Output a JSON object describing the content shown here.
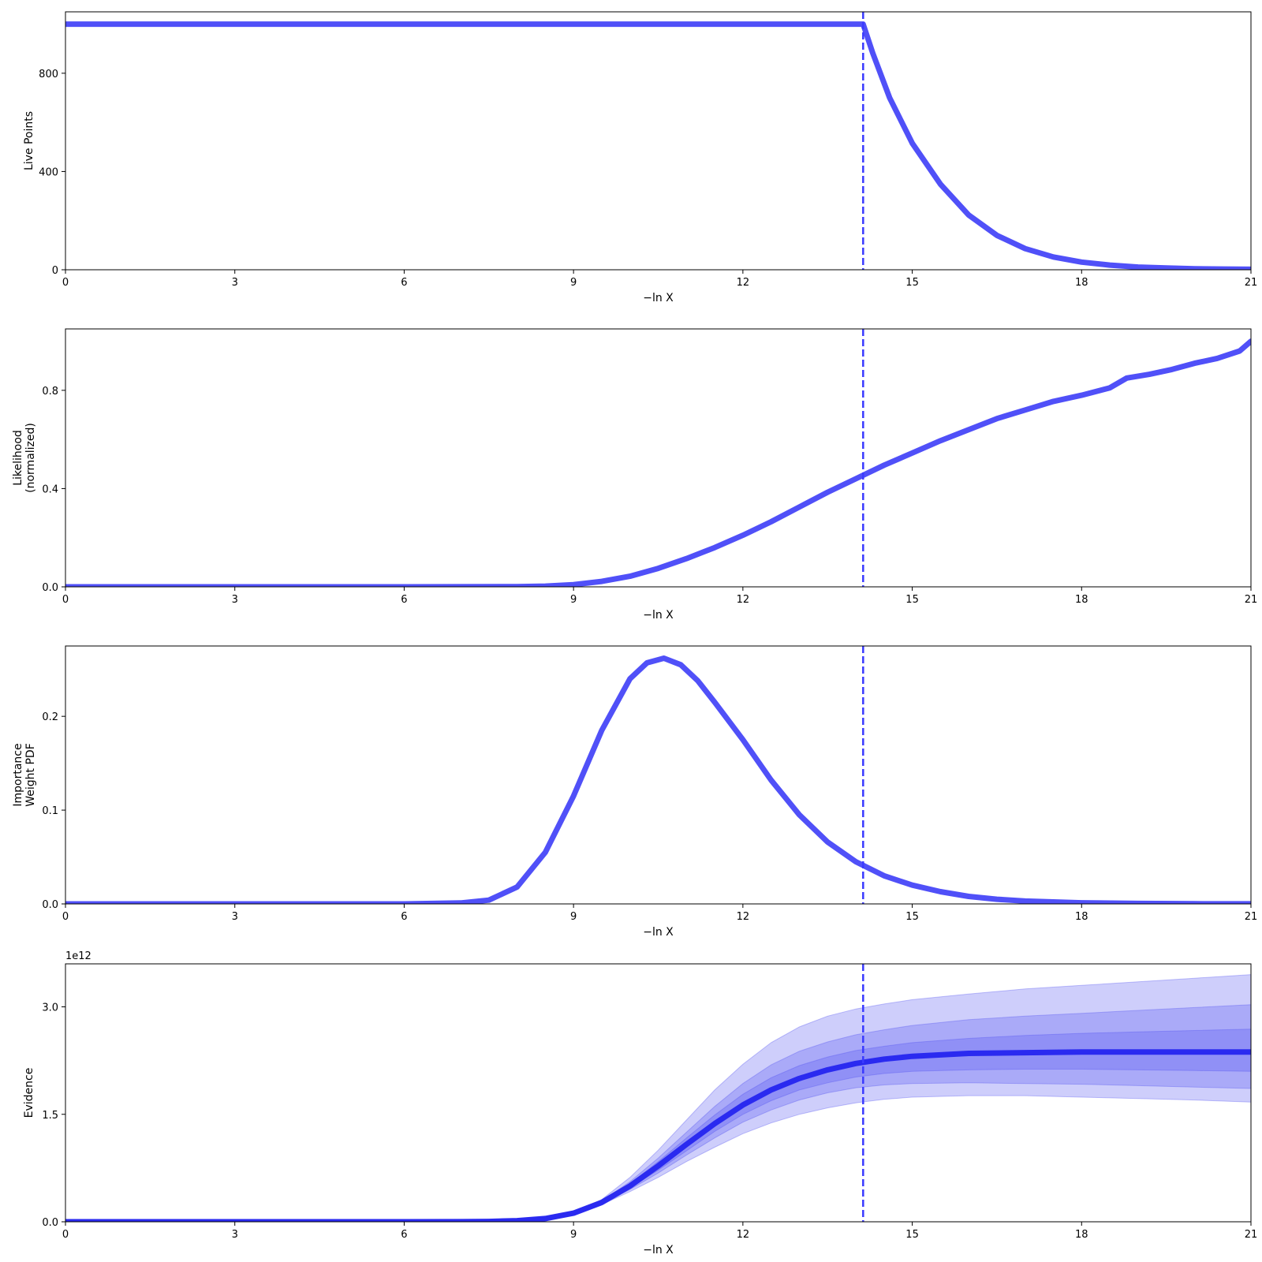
{
  "figure": {
    "line_color": "#5050f8",
    "evidence_line_color": "#2a2af0",
    "band_color": "#5050f0",
    "vline_color": "#3a3aff"
  },
  "chart_data": [
    {
      "type": "line",
      "xlabel": "−ln X",
      "ylabel": [
        "Live Points"
      ],
      "xlim": [
        0,
        21
      ],
      "ylim": [
        0,
        1050
      ],
      "xticks": [
        0,
        3,
        6,
        9,
        12,
        15,
        18,
        21
      ],
      "yticks": [
        0,
        400,
        800
      ],
      "ytick_labels": [
        "0",
        "400",
        "800"
      ],
      "vline_x": 14.13,
      "series": [
        {
          "x": [
            0,
            2,
            4,
            6,
            8,
            10,
            12,
            14.13,
            14.3,
            14.6,
            15.0,
            15.5,
            16.0,
            16.5,
            17.0,
            17.5,
            18.0,
            18.5,
            19.0,
            19.5,
            20.0,
            20.5,
            21.0
          ],
          "y": [
            1000,
            1000,
            1000,
            1000,
            1000,
            1000,
            1000,
            1000,
            882,
            700,
            515,
            348,
            223,
            140,
            86,
            52,
            31,
            19,
            11,
            7,
            4,
            3,
            2
          ]
        }
      ]
    },
    {
      "type": "line",
      "xlabel": "−ln X",
      "ylabel": [
        "Likelihood",
        "(normalized)"
      ],
      "xlim": [
        0,
        21
      ],
      "ylim": [
        0,
        1.05
      ],
      "xticks": [
        0,
        3,
        6,
        9,
        12,
        15,
        18,
        21
      ],
      "yticks": [
        0,
        0.4,
        0.8
      ],
      "ytick_labels": [
        "0.0",
        "0.4",
        "0.8"
      ],
      "vline_x": 14.13,
      "series": [
        {
          "x": [
            0,
            6,
            8.0,
            8.5,
            9.0,
            9.5,
            10.0,
            10.5,
            11.0,
            11.5,
            12.0,
            12.5,
            13.0,
            13.5,
            14.0,
            14.5,
            15.0,
            15.5,
            16.0,
            16.5,
            17.0,
            17.5,
            18.0,
            18.5,
            18.8,
            19.2,
            19.6,
            20.0,
            20.4,
            20.8,
            21.0
          ],
          "y": [
            0,
            0,
            0.001,
            0.003,
            0.009,
            0.022,
            0.043,
            0.075,
            0.115,
            0.16,
            0.21,
            0.265,
            0.325,
            0.385,
            0.44,
            0.495,
            0.545,
            0.595,
            0.64,
            0.685,
            0.72,
            0.755,
            0.78,
            0.81,
            0.85,
            0.865,
            0.885,
            0.91,
            0.93,
            0.96,
            1.0
          ]
        }
      ]
    },
    {
      "type": "line",
      "xlabel": "−ln X",
      "ylabel": [
        "Importance",
        "Weight PDF"
      ],
      "xlim": [
        0,
        21
      ],
      "ylim": [
        0,
        0.275
      ],
      "xticks": [
        0,
        3,
        6,
        9,
        12,
        15,
        18,
        21
      ],
      "yticks": [
        0,
        0.1,
        0.2
      ],
      "ytick_labels": [
        "0.0",
        "0.1",
        "0.2"
      ],
      "vline_x": 14.13,
      "series": [
        {
          "x": [
            0,
            6,
            7.0,
            7.5,
            8.0,
            8.5,
            9.0,
            9.5,
            10.0,
            10.3,
            10.6,
            10.9,
            11.2,
            11.5,
            12.0,
            12.5,
            13.0,
            13.5,
            14.0,
            14.5,
            15.0,
            15.5,
            16.0,
            16.5,
            17.0,
            18.0,
            19.0,
            20.0,
            21.0
          ],
          "y": [
            0,
            0,
            0.001,
            0.004,
            0.018,
            0.055,
            0.115,
            0.185,
            0.24,
            0.257,
            0.262,
            0.255,
            0.238,
            0.215,
            0.175,
            0.132,
            0.095,
            0.066,
            0.045,
            0.03,
            0.02,
            0.013,
            0.008,
            0.005,
            0.003,
            0.0012,
            0.0005,
            0.0002,
            0.0001
          ]
        }
      ]
    },
    {
      "type": "area",
      "xlabel": "−ln X",
      "ylabel": [
        "Evidence"
      ],
      "exponent_label": "1e12",
      "xlim": [
        0,
        21
      ],
      "ylim": [
        0,
        3.6
      ],
      "xticks": [
        0,
        3,
        6,
        9,
        12,
        15,
        18,
        21
      ],
      "yticks": [
        0,
        1.5,
        3.0
      ],
      "ytick_labels": [
        "0.0",
        "1.5",
        "3.0"
      ],
      "vline_x": 14.13,
      "x": [
        0,
        6,
        7.0,
        7.5,
        8.0,
        8.5,
        9.0,
        9.5,
        10.0,
        10.5,
        11.0,
        11.5,
        12.0,
        12.5,
        13.0,
        13.5,
        14.0,
        14.5,
        15.0,
        16.0,
        17.0,
        18.0,
        19.0,
        20.0,
        21.0
      ],
      "series": [
        {
          "y": [
            0,
            0,
            0.001,
            0.004,
            0.015,
            0.045,
            0.12,
            0.27,
            0.5,
            0.78,
            1.08,
            1.37,
            1.63,
            1.84,
            2.0,
            2.12,
            2.21,
            2.27,
            2.31,
            2.35,
            2.36,
            2.37,
            2.37,
            2.37,
            2.37
          ]
        }
      ],
      "bands": [
        {
          "lower": [
            0,
            0,
            0.001,
            0.003,
            0.012,
            0.04,
            0.11,
            0.24,
            0.42,
            0.62,
            0.84,
            1.04,
            1.23,
            1.38,
            1.5,
            1.59,
            1.66,
            1.71,
            1.74,
            1.76,
            1.76,
            1.74,
            1.72,
            1.7,
            1.67
          ],
          "upper": [
            0,
            0,
            0.001,
            0.005,
            0.018,
            0.052,
            0.135,
            0.31,
            0.62,
            1.0,
            1.42,
            1.84,
            2.2,
            2.5,
            2.72,
            2.87,
            2.97,
            3.04,
            3.1,
            3.18,
            3.25,
            3.3,
            3.35,
            3.4,
            3.45
          ]
        },
        {
          "lower": [
            0,
            0,
            0.001,
            0.004,
            0.013,
            0.042,
            0.115,
            0.25,
            0.45,
            0.68,
            0.93,
            1.17,
            1.39,
            1.56,
            1.7,
            1.8,
            1.87,
            1.91,
            1.93,
            1.94,
            1.93,
            1.92,
            1.9,
            1.88,
            1.86
          ],
          "upper": [
            0,
            0,
            0.001,
            0.004,
            0.017,
            0.049,
            0.128,
            0.29,
            0.56,
            0.89,
            1.25,
            1.61,
            1.93,
            2.19,
            2.38,
            2.51,
            2.61,
            2.68,
            2.74,
            2.82,
            2.87,
            2.91,
            2.95,
            2.99,
            3.03
          ]
        },
        {
          "lower": [
            0,
            0,
            0.001,
            0.004,
            0.014,
            0.043,
            0.117,
            0.26,
            0.47,
            0.72,
            0.99,
            1.26,
            1.5,
            1.69,
            1.84,
            1.94,
            2.02,
            2.07,
            2.1,
            2.12,
            2.13,
            2.13,
            2.12,
            2.11,
            2.1
          ],
          "upper": [
            0,
            0,
            0.001,
            0.004,
            0.016,
            0.047,
            0.124,
            0.28,
            0.53,
            0.84,
            1.17,
            1.49,
            1.78,
            2.01,
            2.18,
            2.3,
            2.39,
            2.45,
            2.5,
            2.56,
            2.6,
            2.63,
            2.65,
            2.67,
            2.69
          ]
        }
      ]
    }
  ]
}
